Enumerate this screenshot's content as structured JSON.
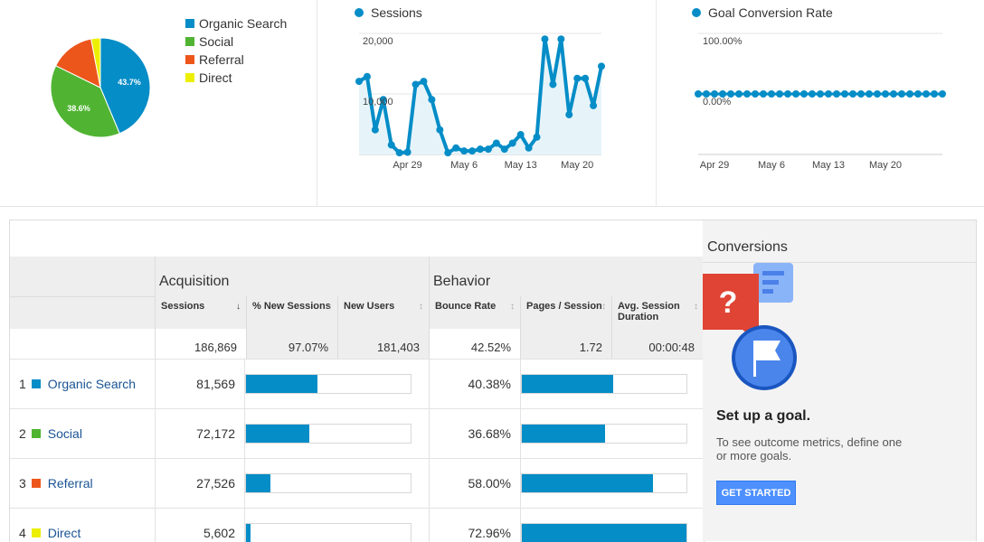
{
  "pie": {
    "legend": [
      {
        "label": "Organic Search",
        "color": "#058dc7"
      },
      {
        "label": "Social",
        "color": "#50b432"
      },
      {
        "label": "Referral",
        "color": "#ed561b"
      },
      {
        "label": "Direct",
        "color": "#edef00"
      }
    ],
    "label_organic": "43.7%",
    "label_social": "38.6%"
  },
  "chart_data": [
    {
      "type": "pie",
      "categories": [
        "Organic Search",
        "Social",
        "Referral",
        "Direct"
      ],
      "values": [
        43.7,
        38.6,
        14.7,
        3.0
      ]
    },
    {
      "type": "area",
      "series": [
        {
          "name": "Sessions",
          "values": [
            12000,
            12800,
            4000,
            9000,
            1500,
            200,
            300,
            11500,
            12000,
            9000,
            4000,
            200,
            1000,
            500,
            500,
            800,
            800,
            1800,
            800,
            1800,
            3200,
            1000,
            2800,
            19000,
            11500,
            19000,
            6500,
            12500,
            12500,
            8000,
            14500
          ]
        }
      ],
      "x": [
        "Apr 23",
        "Apr 24",
        "Apr 25",
        "Apr 26",
        "Apr 27",
        "Apr 28",
        "Apr 29",
        "Apr 30",
        "May 1",
        "May 2",
        "May 3",
        "May 4",
        "May 5",
        "May 6",
        "May 7",
        "May 8",
        "May 9",
        "May 10",
        "May 11",
        "May 12",
        "May 13",
        "May 14",
        "May 15",
        "May 16",
        "May 17",
        "May 18",
        "May 19",
        "May 20",
        "May 21",
        "May 22",
        "May 23"
      ],
      "x_ticks": [
        "Apr 29",
        "May 6",
        "May 13",
        "May 20"
      ],
      "y_ticks": [
        "20,000",
        "10,000"
      ],
      "ylim": [
        0,
        20000
      ]
    },
    {
      "type": "line",
      "series": [
        {
          "name": "Goal Conversion Rate",
          "values": [
            0,
            0,
            0,
            0,
            0,
            0,
            0,
            0,
            0,
            0,
            0,
            0,
            0,
            0,
            0,
            0,
            0,
            0,
            0,
            0,
            0,
            0,
            0,
            0,
            0,
            0,
            0,
            0,
            0,
            0,
            0
          ]
        }
      ],
      "x_ticks": [
        "Apr 29",
        "May 6",
        "May 13",
        "May 20"
      ],
      "y_ticks": [
        "100.00%",
        "0.00%"
      ],
      "ylim": [
        0,
        100
      ]
    }
  ],
  "sessions_chart": {
    "legend": "Sessions",
    "color": "#058dc7"
  },
  "conv_chart": {
    "legend": "Goal Conversion Rate"
  },
  "table": {
    "groups": {
      "acquisition": "Acquisition",
      "behavior": "Behavior"
    },
    "columns": [
      {
        "label": "Sessions",
        "arrow": "↓"
      },
      {
        "label": "% New Sessions",
        "arrow": "↕"
      },
      {
        "label": "New Users",
        "arrow": "↕"
      },
      {
        "label": "Bounce Rate",
        "arrow": "↕"
      },
      {
        "label": "Pages / Session",
        "arrow": "↕"
      },
      {
        "label": "Avg. Session Duration",
        "arrow": "↕"
      }
    ],
    "totals": [
      "186,869",
      "97.07%",
      "181,403",
      "42.52%",
      "1.72",
      "00:00:48"
    ],
    "rows": [
      {
        "index": "1",
        "name": "Organic Search",
        "color": "#058dc7",
        "sessions": "81,569",
        "bounce": "40.38%",
        "sessions_share": 0.436,
        "bounce_share": 0.553
      },
      {
        "index": "2",
        "name": "Social",
        "color": "#50b432",
        "sessions": "72,172",
        "bounce": "36.68%",
        "sessions_share": 0.386,
        "bounce_share": 0.503
      },
      {
        "index": "3",
        "name": "Referral",
        "color": "#ed561b",
        "sessions": "27,526",
        "bounce": "58.00%",
        "sessions_share": 0.147,
        "bounce_share": 0.795
      },
      {
        "index": "4",
        "name": "Direct",
        "color": "#edef00",
        "sessions": "5,602",
        "bounce": "72.96%",
        "sessions_share": 0.03,
        "bounce_share": 1.0
      }
    ]
  },
  "conversions": {
    "title": "Conversions",
    "goal_title": "Set up a goal.",
    "goal_desc": "To see outcome metrics, define one or more goals.",
    "button": "GET STARTED"
  }
}
